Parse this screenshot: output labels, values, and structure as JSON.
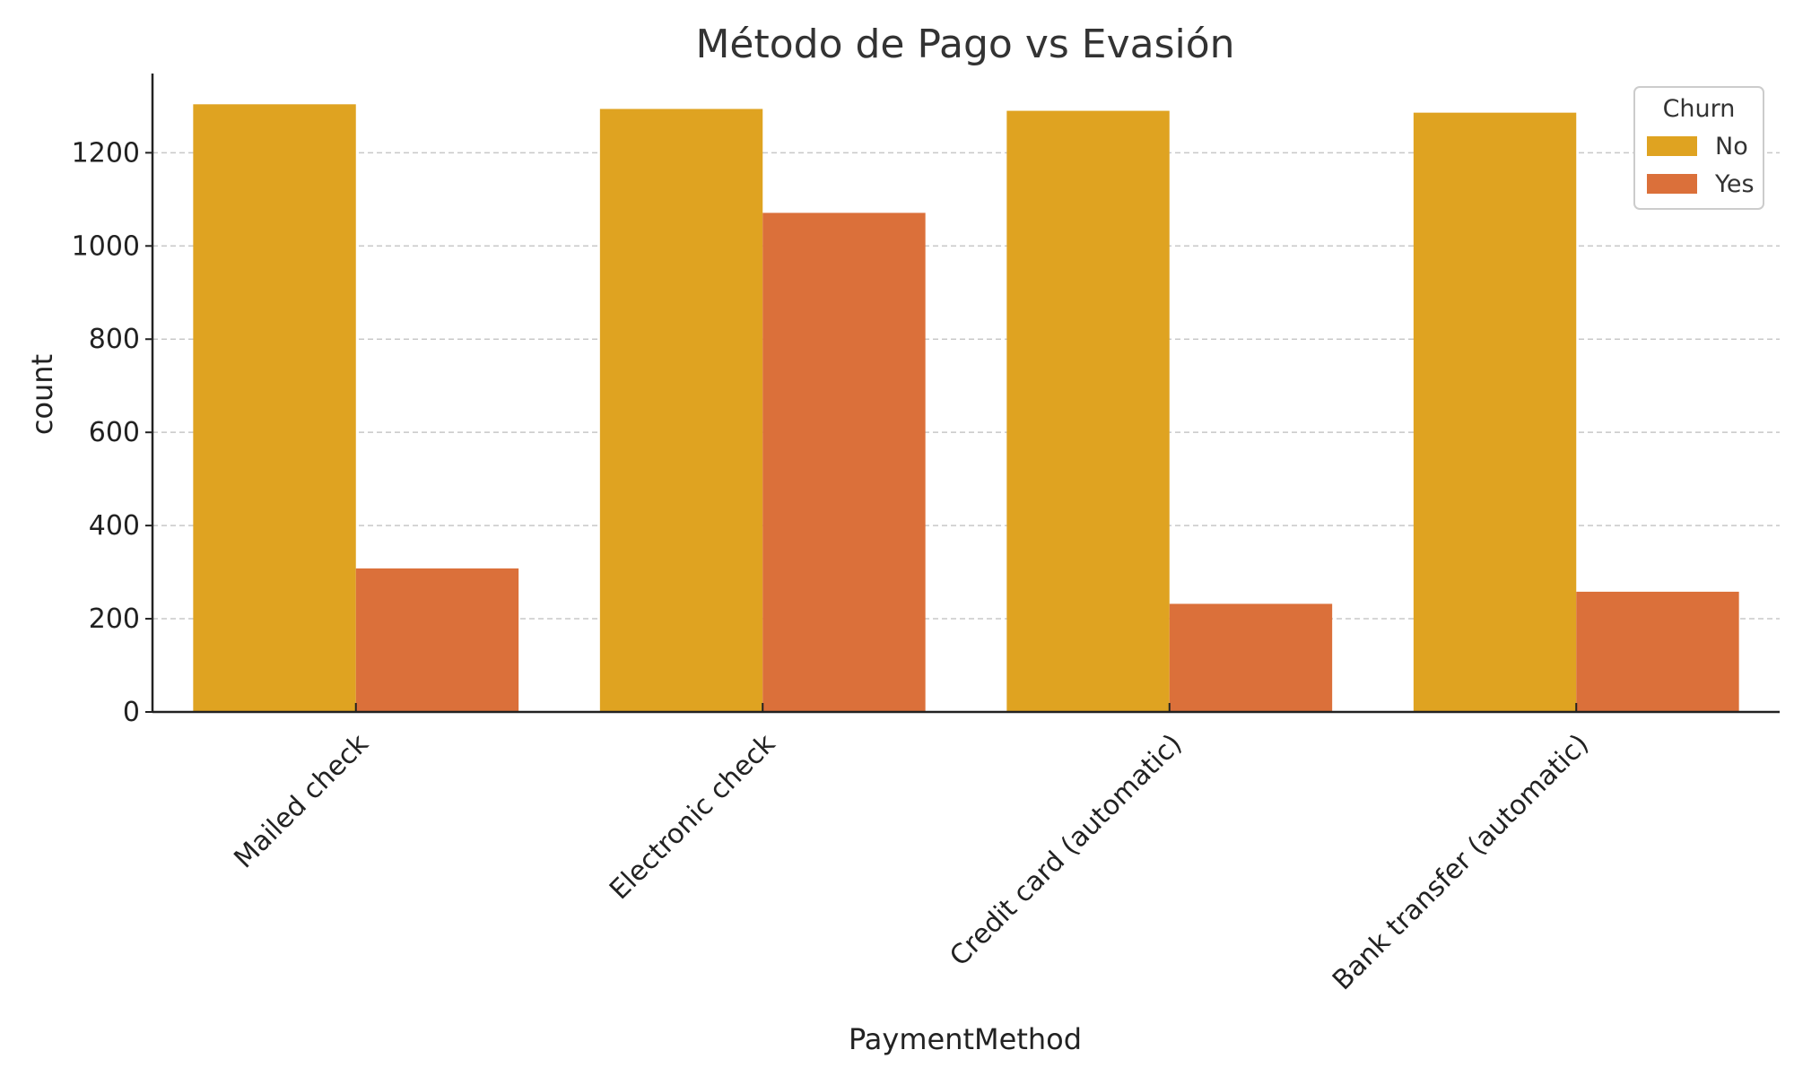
{
  "chart_data": {
    "type": "bar",
    "title": "Método de Pago vs Evasión",
    "xlabel": "PaymentMethod",
    "ylabel": "count",
    "categories": [
      "Mailed check",
      "Electronic check",
      "Credit card (automatic)",
      "Bank transfer (automatic)"
    ],
    "series": [
      {
        "name": "No",
        "color": "#dfa321",
        "values": [
          1304,
          1294,
          1290,
          1286
        ]
      },
      {
        "name": "Yes",
        "color": "#db703a",
        "values": [
          308,
          1071,
          232,
          258
        ]
      }
    ],
    "ylim": [
      0,
      1370
    ],
    "yticks": [
      0,
      200,
      400,
      600,
      800,
      1000,
      1200
    ],
    "grid": true,
    "legend": {
      "title": "Churn",
      "placement": "top-right"
    }
  }
}
